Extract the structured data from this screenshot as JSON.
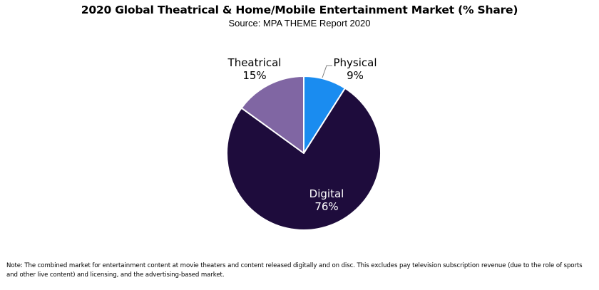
{
  "chart_data": {
    "type": "pie",
    "title": "2020 Global Theatrical & Home/Mobile Entertainment Market (% Share)",
    "subtitle": "Source: MPA THEME Report 2020",
    "slices": [
      {
        "label": "Physical",
        "value": 9,
        "value_label": "9%",
        "color": "#1a8cf0"
      },
      {
        "label": "Digital",
        "value": 76,
        "value_label": "76%",
        "color": "#1e0c3c"
      },
      {
        "label": "Theatrical",
        "value": 15,
        "value_label": "15%",
        "color": "#8066a3"
      }
    ],
    "start_angle_deg": 0,
    "direction": "clockwise",
    "legend": "none",
    "note": "Note: The combined market for entertainment content at movie theaters and content released digitally and on disc. This excludes pay television subscription revenue (due to the role of sports and other live content) and licensing, and the advertising-based market."
  }
}
